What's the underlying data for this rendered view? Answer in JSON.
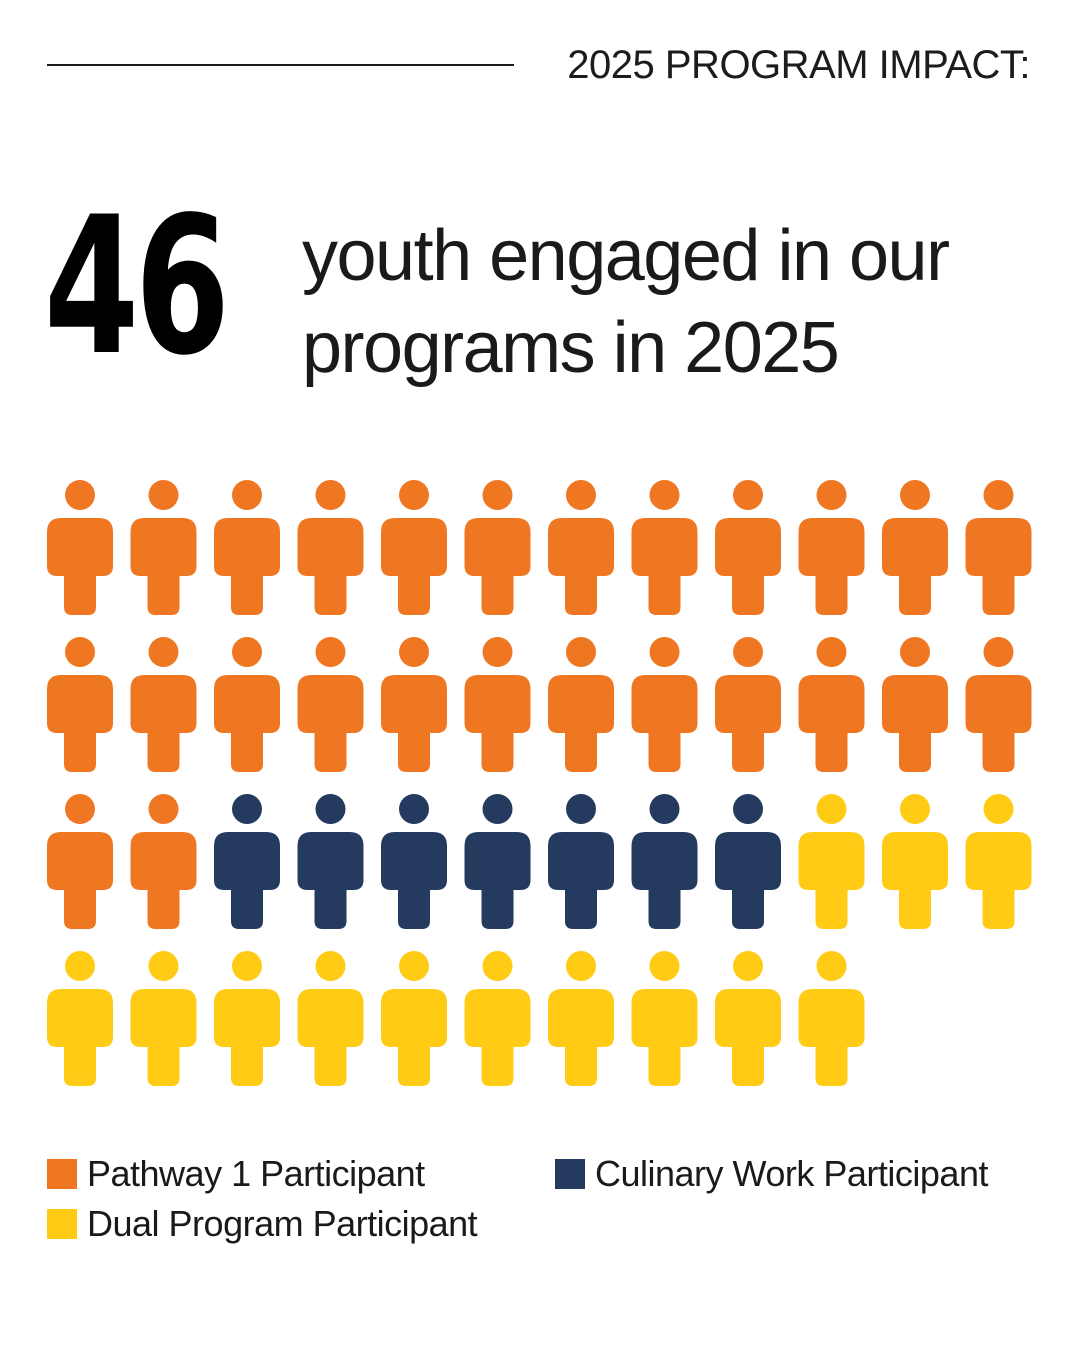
{
  "header": {
    "eyebrow": "2025 PROGRAM IMPACT:"
  },
  "headline": {
    "number": "46",
    "line1": "youth engaged in our",
    "line2": "programs in 2025"
  },
  "colors": {
    "pathway": "#F07722",
    "culinary": "#243A5E",
    "dual": "#FFCB14"
  },
  "legend": {
    "pathway": "Pathway 1 Participant",
    "culinary": "Culinary Work Participant",
    "dual": "Dual Program Participant"
  },
  "chart_data": {
    "type": "pictogram",
    "icon": "person-icon",
    "total": 46,
    "per_row": 12,
    "series": [
      {
        "name": "Pathway 1 Participant",
        "key": "pathway",
        "value": 26
      },
      {
        "name": "Culinary Work Participant",
        "key": "culinary",
        "value": 7
      },
      {
        "name": "Dual Program Participant",
        "key": "dual",
        "value": 13
      }
    ]
  }
}
